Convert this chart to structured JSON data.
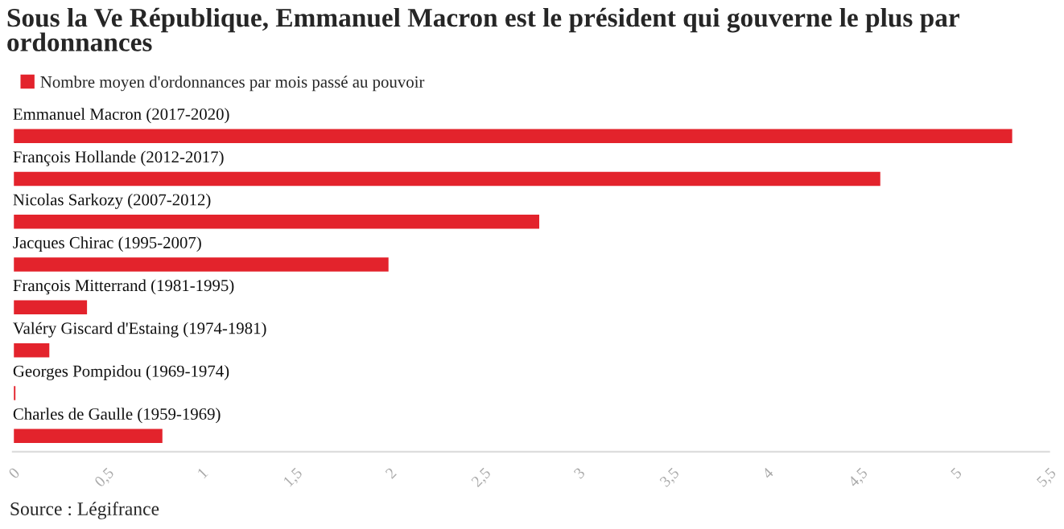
{
  "chart_data": {
    "type": "bar",
    "orientation": "horizontal",
    "title": "Sous la Ve République, Emmanuel Macron est le président qui gouverne le plus par ordonnances",
    "categories": [
      "Emmanuel Macron (2017-2020)",
      "François Hollande (2012-2017)",
      "Nicolas Sarkozy (2007-2012)",
      "Jacques Chirac (1995-2007)",
      "François Mitterrand (1981-1995)",
      "Valéry Giscard d'Estaing (1974-1981)",
      "Georges Pompidou (1969-1974)",
      "Charles de Gaulle (1959-1969)"
    ],
    "series": [
      {
        "name": "Nombre moyen d'ordonnances par mois passé au pouvoir",
        "color": "#e3232c",
        "values": [
          5.31,
          4.61,
          2.8,
          2.0,
          0.4,
          0.2,
          0.02,
          0.8
        ]
      }
    ],
    "xlim": [
      0,
      5.5
    ],
    "xticks": [
      0,
      {
        "value": 0.5,
        "label": "0,5"
      },
      1,
      {
        "value": 1.5,
        "label": "1,5"
      },
      2,
      {
        "value": 2.5,
        "label": "2,5"
      },
      3,
      {
        "value": 3.5,
        "label": "3,5"
      },
      4,
      {
        "value": 4.5,
        "label": "4,5"
      },
      5,
      {
        "value": 5.5,
        "label": "5,5"
      }
    ],
    "legend": "top left",
    "annotations": [
      "Source : Légifrance"
    ]
  }
}
